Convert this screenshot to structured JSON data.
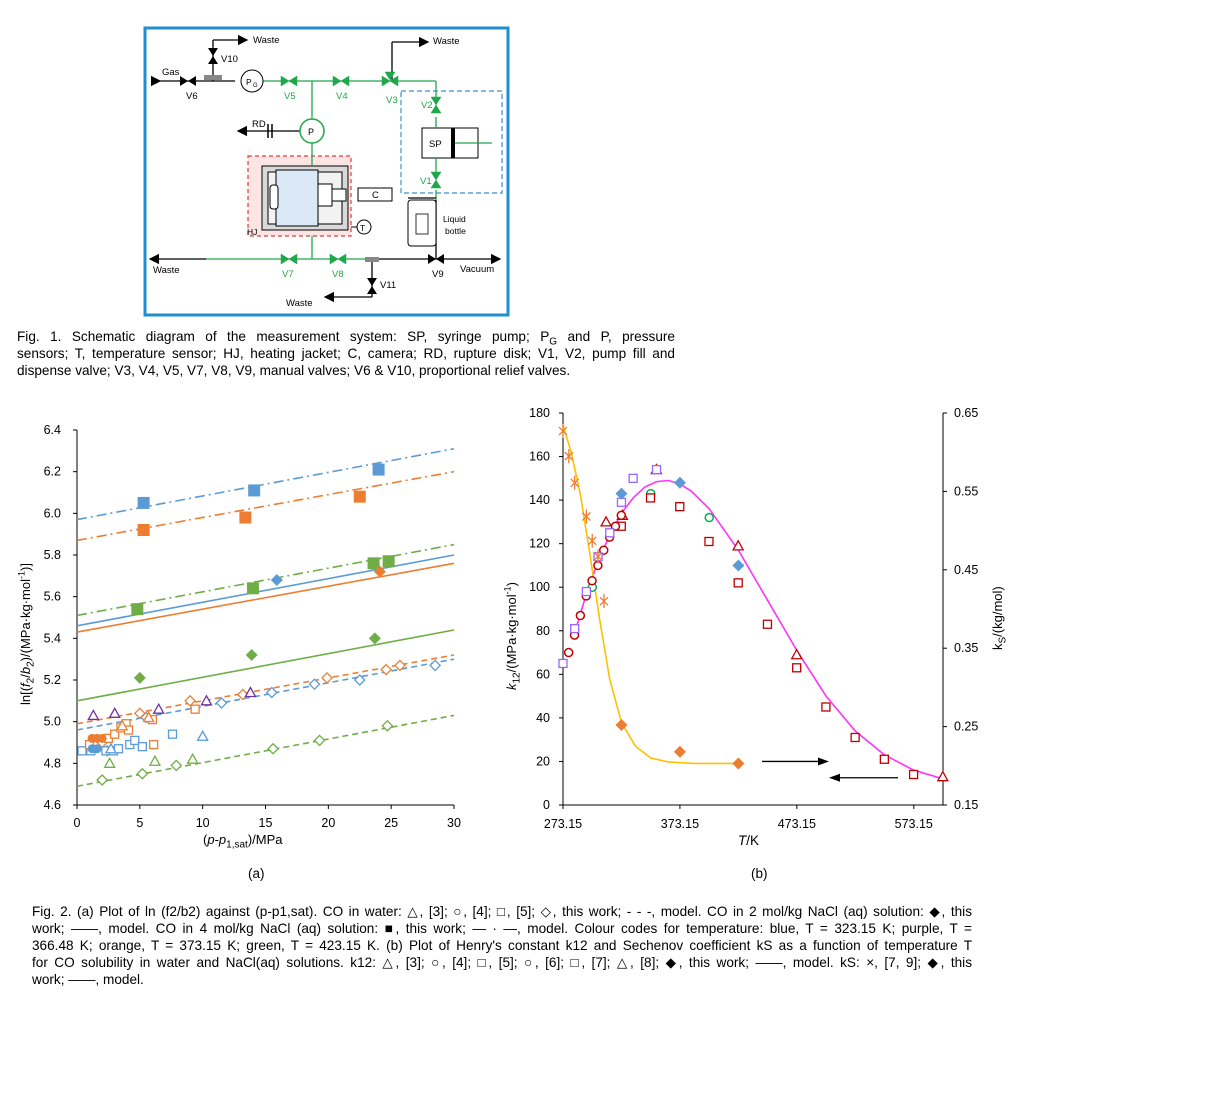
{
  "schematic": {
    "labels": {
      "waste_top_left": "Waste",
      "waste_top_right": "Waste",
      "v10": "V10",
      "gas": "Gas",
      "v6": "V6",
      "pg": "P",
      "pg_sub": "G",
      "v5": "V5",
      "v4": "V4",
      "v3": "V3",
      "v2": "V2",
      "rd": "RD",
      "p": "P",
      "sp": "SP",
      "v1": "V1",
      "c": "C",
      "t": "T",
      "hj": "HJ",
      "liquid": "Liquid",
      "bottle": "bottle",
      "waste_left": "Waste",
      "v7": "V7",
      "v8": "V8",
      "v11": "V11",
      "v9": "V9",
      "vacuum": "Vacuum",
      "waste_bottom": "Waste"
    },
    "colors": {
      "frame": "#1f8fd0",
      "valve": "#1fa84a",
      "hj_box": "#e23b3b",
      "sp_box": "#3a8fd0",
      "black": "#000000"
    }
  },
  "fig1_caption": {
    "line1": "Fig. 1. Schematic diagram of the measurement system: SP, syringe pump; P",
    "line1_sub": "G",
    "line1_end": " and P, pressure",
    "line2": "sensors; T, temperature sensor; HJ, heating jacket; C, camera; RD, rupture disk; V1, V2, pump fill and",
    "line3": "dispense valve; V3, V4, V5, V7, V8, V9, manual valves; V6 & V10, proportional relief valves."
  },
  "chart_data": [
    {
      "type": "scatter",
      "panel_label": "(a)",
      "xlabel": "(p-p1,sat)/MPa",
      "ylabel": "ln[(f2/b2)/(MPa·kg·mol-1)]",
      "xlim": [
        0,
        30
      ],
      "ylim": [
        4.6,
        6.4
      ],
      "xticks": [
        "0",
        "5",
        "10",
        "15",
        "20",
        "25",
        "30"
      ],
      "yticks": [
        "4.6",
        "4.8",
        "5.0",
        "5.2",
        "5.4",
        "5.6",
        "5.8",
        "6.0",
        "6.2",
        "6.4"
      ],
      "colors": {
        "blue": "#5b9bd5",
        "orange": "#ed7d31",
        "green": "#70ad47",
        "purple": "#7030a0"
      },
      "series": [
        {
          "color": "blue",
          "marker": "filled-square",
          "points": [
            [
              5.3,
              6.05
            ],
            [
              14.1,
              6.11
            ],
            [
              24.0,
              6.21
            ]
          ]
        },
        {
          "color": "orange",
          "marker": "filled-square",
          "points": [
            [
              5.3,
              5.92
            ],
            [
              13.4,
              5.98
            ],
            [
              22.5,
              6.08
            ]
          ]
        },
        {
          "color": "green",
          "marker": "filled-square",
          "points": [
            [
              4.8,
              5.54
            ],
            [
              14.0,
              5.64
            ],
            [
              23.6,
              5.76
            ],
            [
              24.8,
              5.77
            ]
          ]
        },
        {
          "color": "blue",
          "marker": "filled-diamond",
          "points": [
            [
              15.9,
              5.68
            ]
          ]
        },
        {
          "color": "orange",
          "marker": "filled-diamond",
          "points": [
            [
              24.1,
              5.72
            ]
          ]
        },
        {
          "color": "green",
          "marker": "filled-diamond",
          "points": [
            [
              5.0,
              5.21
            ],
            [
              13.9,
              5.32
            ],
            [
              23.7,
              5.4
            ]
          ]
        },
        {
          "color": "blue",
          "marker": "open-diamond",
          "points": [
            [
              2.4,
              4.86
            ],
            [
              5.5,
              5.02
            ],
            [
              11.5,
              5.09
            ],
            [
              15.5,
              5.14
            ],
            [
              18.9,
              5.18
            ],
            [
              22.5,
              5.2
            ],
            [
              28.5,
              5.27
            ]
          ]
        },
        {
          "color": "orange",
          "marker": "open-diamond",
          "points": [
            [
              2.0,
              4.9
            ],
            [
              5.0,
              5.04
            ],
            [
              9.0,
              5.1
            ],
            [
              13.2,
              5.13
            ],
            [
              19.9,
              5.21
            ],
            [
              24.6,
              5.25
            ],
            [
              25.7,
              5.27
            ]
          ]
        },
        {
          "color": "green",
          "marker": "open-diamond",
          "points": [
            [
              2.0,
              4.72
            ],
            [
              5.2,
              4.75
            ],
            [
              7.9,
              4.79
            ],
            [
              15.6,
              4.87
            ],
            [
              19.3,
              4.91
            ],
            [
              24.7,
              4.98
            ]
          ]
        },
        {
          "color": "blue",
          "marker": "open-square",
          "points": [
            [
              0.4,
              4.86
            ],
            [
              1.1,
              4.86
            ],
            [
              2.3,
              4.86
            ],
            [
              2.9,
              4.86
            ],
            [
              3.3,
              4.87
            ],
            [
              4.2,
              4.89
            ],
            [
              4.6,
              4.91
            ],
            [
              5.2,
              4.88
            ],
            [
              7.6,
              4.94
            ]
          ]
        },
        {
          "color": "orange",
          "marker": "open-square",
          "points": [
            [
              1.0,
              4.89
            ],
            [
              2.5,
              4.92
            ],
            [
              3.0,
              4.94
            ],
            [
              3.5,
              4.97
            ],
            [
              3.9,
              4.99
            ],
            [
              4.1,
              4.96
            ],
            [
              6.0,
              5.01
            ],
            [
              6.1,
              4.89
            ],
            [
              9.4,
              5.06
            ]
          ]
        },
        {
          "color": "blue",
          "marker": "filled-circle",
          "points": [
            [
              1.2,
              4.87
            ],
            [
              1.6,
              4.87
            ]
          ]
        },
        {
          "color": "orange",
          "marker": "filled-circle",
          "points": [
            [
              1.2,
              4.92
            ],
            [
              1.6,
              4.92
            ],
            [
              2.0,
              4.92
            ]
          ]
        },
        {
          "color": "purple",
          "marker": "open-triangle",
          "points": [
            [
              1.3,
              5.03
            ],
            [
              3.0,
              5.04
            ],
            [
              6.5,
              5.06
            ],
            [
              10.3,
              5.1
            ],
            [
              13.8,
              5.14
            ]
          ]
        },
        {
          "color": "blue",
          "marker": "open-triangle",
          "points": [
            [
              2.7,
              4.87
            ],
            [
              10.0,
              4.93
            ]
          ]
        },
        {
          "color": "orange",
          "marker": "open-triangle",
          "points": [
            [
              3.6,
              4.98
            ],
            [
              5.7,
              5.02
            ]
          ]
        },
        {
          "color": "green",
          "marker": "open-triangle",
          "points": [
            [
              2.6,
              4.8
            ],
            [
              6.2,
              4.81
            ],
            [
              9.2,
              4.82
            ]
          ]
        }
      ],
      "lines": [
        {
          "color": "blue",
          "style": "dashdot",
          "from": [
            0,
            5.97
          ],
          "to": [
            30,
            6.31
          ]
        },
        {
          "color": "orange",
          "style": "dashdot",
          "from": [
            0,
            5.87
          ],
          "to": [
            30,
            6.2
          ]
        },
        {
          "color": "green",
          "style": "dashdot",
          "from": [
            0,
            5.51
          ],
          "to": [
            30,
            5.85
          ]
        },
        {
          "color": "blue",
          "style": "solid",
          "from": [
            0,
            5.46
          ],
          "to": [
            30,
            5.8
          ]
        },
        {
          "color": "orange",
          "style": "solid",
          "from": [
            0,
            5.43
          ],
          "to": [
            30,
            5.76
          ]
        },
        {
          "color": "green",
          "style": "solid",
          "from": [
            0,
            5.1
          ],
          "to": [
            30,
            5.44
          ]
        },
        {
          "color": "blue",
          "style": "dashed",
          "from": [
            0,
            4.96
          ],
          "to": [
            30,
            5.3
          ]
        },
        {
          "color": "orange",
          "style": "dashed",
          "from": [
            0,
            4.99
          ],
          "to": [
            30,
            5.32
          ]
        },
        {
          "color": "green",
          "style": "dashed",
          "from": [
            0,
            4.69
          ],
          "to": [
            30,
            5.03
          ]
        }
      ]
    },
    {
      "type": "scatter",
      "panel_label": "(b)",
      "xlabel": "T/K",
      "ylabel": "k12/(MPa·kg·mol-1)",
      "y2label": "kS/(kg/mol)",
      "xlim": [
        273.15,
        598.15
      ],
      "ylim": [
        0,
        180
      ],
      "y2lim": [
        0.15,
        0.65
      ],
      "xticks": [
        "273.15",
        "373.15",
        "473.15",
        "573.15"
      ],
      "yticks": [
        "0",
        "20",
        "40",
        "60",
        "80",
        "100",
        "120",
        "140",
        "160",
        "180"
      ],
      "y2ticks": [
        "0.15",
        "0.25",
        "0.35",
        "0.45",
        "0.55",
        "0.65"
      ],
      "colors": {
        "red": "#c00000",
        "green": "#00b050",
        "purple": "#9966ff",
        "blue": "#5b9bd5",
        "magenta": "#ff33ff",
        "orange": "#ed7d31",
        "yellow": "#ffc000"
      },
      "series": [
        {
          "color": "red",
          "marker": "open-triangle",
          "points": [
            [
              310,
              130
            ],
            [
              324,
              133
            ],
            [
              353,
              154
            ],
            [
              423,
              119
            ],
            [
              473,
              69
            ],
            [
              598,
              13
            ]
          ]
        },
        {
          "color": "green",
          "marker": "open-circle",
          "points": [
            [
              298.2,
              100
            ],
            [
              348.2,
              143
            ],
            [
              398.2,
              132
            ]
          ]
        },
        {
          "color": "red",
          "marker": "open-square",
          "points": [
            [
              323,
              128
            ],
            [
              348,
              141
            ],
            [
              373,
              137
            ],
            [
              398,
              121
            ],
            [
              423,
              102
            ],
            [
              448,
              83
            ],
            [
              473,
              63
            ],
            [
              498,
              45
            ],
            [
              523,
              31
            ],
            [
              548,
              21
            ],
            [
              573,
              14
            ]
          ]
        },
        {
          "color": "red",
          "marker": "open-circle",
          "points": [
            [
              278,
              70
            ],
            [
              283,
              78
            ],
            [
              288,
              87
            ],
            [
              293,
              96
            ],
            [
              298,
              103
            ],
            [
              303,
              110
            ],
            [
              308,
              117
            ],
            [
              313,
              123
            ],
            [
              318,
              128
            ],
            [
              323,
              133
            ]
          ]
        },
        {
          "color": "purple",
          "marker": "open-square",
          "points": [
            [
              273.15,
              65
            ],
            [
              283.15,
              81
            ],
            [
              293.15,
              98
            ],
            [
              303.15,
              114
            ],
            [
              313.15,
              125
            ],
            [
              323.15,
              139
            ],
            [
              333.15,
              150
            ],
            [
              353.15,
              154
            ]
          ]
        },
        {
          "color": "blue",
          "marker": "filled-diamond",
          "points": [
            [
              323.15,
              143
            ],
            [
              373.15,
              148
            ],
            [
              423.15,
              110
            ]
          ]
        },
        {
          "color": "orange",
          "marker": "cross",
          "points": [
            [
              273.15,
              0.627
            ],
            [
              278.15,
              0.595
            ],
            [
              283.15,
              0.561
            ],
            [
              293.15,
              0.518
            ],
            [
              298.15,
              0.487
            ],
            [
              303.15,
              0.467
            ],
            [
              308.15,
              0.41
            ]
          ]
        },
        {
          "color": "orange",
          "marker": "filled-diamond",
          "points": [
            [
              323.15,
              0.252
            ],
            [
              373.15,
              0.218
            ],
            [
              423.15,
              0.203
            ]
          ]
        }
      ],
      "curves": [
        {
          "color": "magenta",
          "axis": "k12",
          "points": [
            [
              283.15,
              79
            ],
            [
              293.15,
              97
            ],
            [
              303.15,
              112
            ],
            [
              313.15,
              124
            ],
            [
              323.15,
              134
            ],
            [
              333.15,
              141
            ],
            [
              343.15,
              146
            ],
            [
              353.15,
              148.5
            ],
            [
              363.15,
              149
            ],
            [
              373.15,
              147.5
            ],
            [
              383.15,
              144
            ],
            [
              398.15,
              136
            ],
            [
              423.15,
              117
            ],
            [
              448.15,
              94
            ],
            [
              473.15,
              71
            ],
            [
              498.15,
              50
            ],
            [
              523.15,
              34
            ],
            [
              548.15,
              23
            ],
            [
              573.15,
              16
            ],
            [
              598.15,
              12
            ]
          ]
        },
        {
          "color": "yellow",
          "axis": "kS",
          "points": [
            [
              273.15,
              0.635
            ],
            [
              280.15,
              0.6
            ],
            [
              288.15,
              0.545
            ],
            [
              296.15,
              0.47
            ],
            [
              304.15,
              0.39
            ],
            [
              313.15,
              0.31
            ],
            [
              323.15,
              0.255
            ],
            [
              335.15,
              0.225
            ],
            [
              348.15,
              0.21
            ],
            [
              363.15,
              0.205
            ],
            [
              385.15,
              0.203
            ],
            [
              423.15,
              0.203
            ]
          ]
        }
      ],
      "arrows": [
        {
          "direction": "right",
          "y": 20
        },
        {
          "direction": "left",
          "y": 12.5
        }
      ]
    }
  ],
  "fig2_caption": {
    "line1": "Fig. 2. (a) Plot of ln (f2/b2) against (p-p1,sat). CO in water: △, [3]; ○, [4]; □, [5]; ◇, this work; - - -, model. CO in 2 mol/kg NaCl (aq) solution: ◆, this",
    "line2": "work; ——, model. CO in 4 mol/kg NaCl (aq) solution: ■, this work; — · —, model. Colour codes for temperature: blue, T = 323.15 K; purple, T =",
    "line3": "366.48 K; orange, T = 373.15 K; green, T = 423.15 K. (b) Plot of Henry's constant k12 and Sechenov coefficient kS as a function of temperature T",
    "line4": "for CO solubility in water and NaCl(aq) solutions. k12: △, [3]; ○, [4]; □, [5]; ○, [6]; □, [7]; △, [8]; ◆, this work; ——, model. kS: ×, [7, 9]; ◆, this",
    "line5": "work; ——, model."
  }
}
